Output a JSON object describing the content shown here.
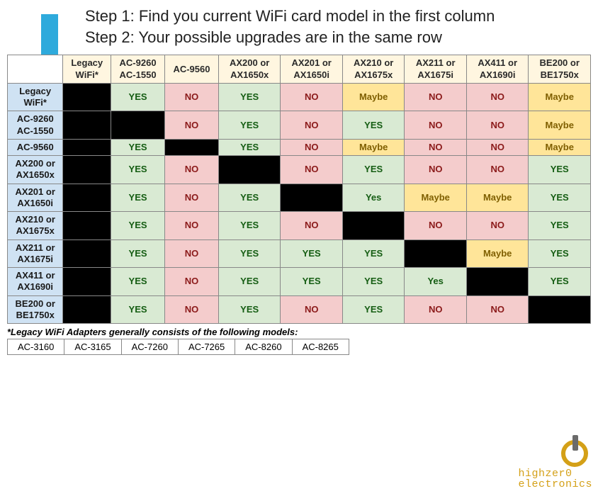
{
  "instructions": {
    "line1": "Step 1: Find you current WiFi card model in the first column",
    "line2": "Step 2: Your possible upgrades are in the same row"
  },
  "arrow_color": "#2eaadc",
  "colors": {
    "yes_bg": "#d9ead3",
    "yes_text": "#155d13",
    "no_bg": "#f4cccc",
    "no_text": "#8b1a1a",
    "maybe_bg": "#ffe599",
    "maybe_text": "#7f5f00",
    "black_bg": "#000000",
    "col_header_bg": "#fff6e0",
    "row_header_bg": "#cfe2f3",
    "border": "#888888"
  },
  "table": {
    "columns": [
      "Legacy WiFi*",
      "AC-9260 AC-1550",
      "AC-9560",
      "AX200 or AX1650x",
      "AX201 or AX1650i",
      "AX210 or AX1675x",
      "AX211 or AX1675i",
      "AX411 or AX1690i",
      "BE200 or BE1750x"
    ],
    "rows": [
      {
        "label": "Legacy WiFi*",
        "cells": [
          "BLACK",
          "YES",
          "NO",
          "YES",
          "NO",
          "Maybe",
          "NO",
          "NO",
          "Maybe"
        ]
      },
      {
        "label": "AC-9260 AC-1550",
        "cells": [
          "BLACK",
          "BLACK",
          "NO",
          "YES",
          "NO",
          "YES",
          "NO",
          "NO",
          "Maybe"
        ]
      },
      {
        "label": "AC-9560",
        "cells": [
          "BLACK",
          "YES",
          "BLACK",
          "YES",
          "NO",
          "Maybe",
          "NO",
          "NO",
          "Maybe"
        ]
      },
      {
        "label": "AX200 or AX1650x",
        "cells": [
          "BLACK",
          "YES",
          "NO",
          "BLACK",
          "NO",
          "YES",
          "NO",
          "NO",
          "YES"
        ]
      },
      {
        "label": "AX201 or AX1650i",
        "cells": [
          "BLACK",
          "YES",
          "NO",
          "YES",
          "BLACK",
          "Yes",
          "Maybe",
          "Maybe",
          "YES"
        ]
      },
      {
        "label": "AX210 or AX1675x",
        "cells": [
          "BLACK",
          "YES",
          "NO",
          "YES",
          "NO",
          "BLACK",
          "NO",
          "NO",
          "YES"
        ]
      },
      {
        "label": "AX211 or AX1675i",
        "cells": [
          "BLACK",
          "YES",
          "NO",
          "YES",
          "YES",
          "YES",
          "BLACK",
          "Maybe",
          "YES"
        ]
      },
      {
        "label": "AX411 or AX1690i",
        "cells": [
          "BLACK",
          "YES",
          "NO",
          "YES",
          "YES",
          "YES",
          "Yes",
          "BLACK",
          "YES"
        ]
      },
      {
        "label": "BE200 or BE1750x",
        "cells": [
          "BLACK",
          "YES",
          "NO",
          "YES",
          "NO",
          "YES",
          "NO",
          "NO",
          "BLACK"
        ]
      }
    ]
  },
  "footnote": "*Legacy WiFi Adapters generally consists of the following models:",
  "legacy_models": [
    "AC-3160",
    "AC-3165",
    "AC-7260",
    "AC-7265",
    "AC-8260",
    "AC-8265"
  ],
  "brand": {
    "line1": "highzer0",
    "line2": "electronics",
    "logo_ring_color": "#d4a017",
    "logo_stem_color": "#6b6b6b"
  }
}
